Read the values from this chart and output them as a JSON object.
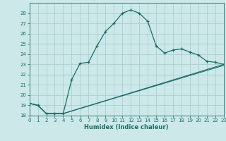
{
  "xlabel": "Humidex (Indice chaleur)",
  "ylabel": "",
  "background_color": "#cce8e8",
  "grid_color": "#aacfcf",
  "line_color": "#1a6b6b",
  "xlim": [
    0,
    23
  ],
  "ylim": [
    18,
    29
  ],
  "yticks": [
    18,
    19,
    20,
    21,
    22,
    23,
    24,
    25,
    26,
    27,
    28
  ],
  "xticks": [
    0,
    1,
    2,
    3,
    4,
    5,
    6,
    7,
    8,
    9,
    10,
    11,
    12,
    13,
    14,
    15,
    16,
    17,
    18,
    19,
    20,
    21,
    22,
    23
  ],
  "line1_x": [
    0,
    1,
    2,
    3,
    4,
    5,
    6,
    7,
    8,
    9,
    10,
    11,
    12,
    13,
    14,
    15,
    16,
    17,
    18,
    19,
    20,
    21,
    22,
    23
  ],
  "line1_y": [
    19.2,
    19.0,
    18.2,
    18.2,
    18.2,
    21.5,
    23.1,
    23.2,
    24.8,
    26.2,
    27.0,
    28.0,
    28.3,
    28.0,
    27.2,
    24.8,
    24.1,
    24.4,
    24.5,
    24.2,
    23.9,
    23.3,
    23.2,
    23.0
  ],
  "line2_x": [
    0,
    1,
    2,
    3,
    4,
    23
  ],
  "line2_y": [
    19.2,
    19.0,
    18.2,
    18.2,
    18.2,
    23.0
  ],
  "line3_x": [
    0,
    1,
    2,
    3,
    4,
    23
  ],
  "line3_y": [
    19.2,
    19.0,
    18.2,
    18.2,
    18.2,
    22.9
  ]
}
